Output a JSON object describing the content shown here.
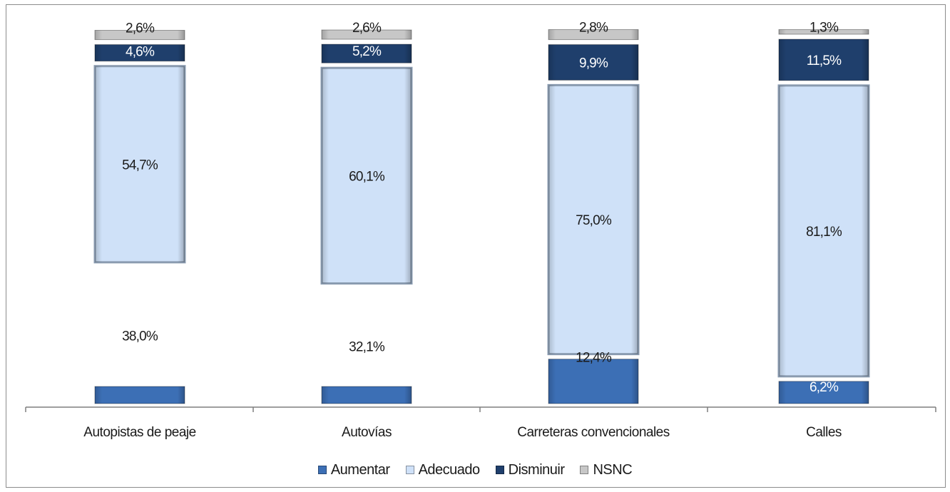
{
  "chart_data": {
    "type": "bar",
    "stacked": true,
    "normalized": true,
    "categories": [
      "Autopistas de peaje",
      "Autovías",
      "Carreteras convencionales",
      "Calles"
    ],
    "series": [
      {
        "name": "Aumentar",
        "values": [
          38.0,
          32.1,
          12.4,
          6.2
        ],
        "labels": [
          "38,0%",
          "32,1%",
          "12,4%",
          "6,2%"
        ],
        "color": "#3c6fb5"
      },
      {
        "name": "Adecuado",
        "values": [
          54.7,
          60.1,
          75.0,
          81.1
        ],
        "labels": [
          "54,7%",
          "60,1%",
          "75,0%",
          "81,1%"
        ],
        "color": "#cfe1f8"
      },
      {
        "name": "Disminuir",
        "values": [
          4.6,
          5.2,
          9.9,
          11.5
        ],
        "labels": [
          "4,6%",
          "5,2%",
          "9,9%",
          "11,5%"
        ],
        "color": "#1f3f6c"
      },
      {
        "name": "NS/NC",
        "values": [
          2.6,
          2.6,
          2.8,
          1.3
        ],
        "labels": [
          "2,6%",
          "2,6%",
          "2,8%",
          "1,3%"
        ],
        "color": "#c7c7c7"
      }
    ],
    "ylim": [
      0,
      100
    ],
    "grid": false,
    "legend_position": "bottom"
  },
  "legend": {
    "items": [
      {
        "label": "Aumentar",
        "color": "#3c6fb5"
      },
      {
        "label": "Adecuado",
        "color": "#cfe1f8"
      },
      {
        "label": "Disminuir",
        "color": "#1f3f6c"
      },
      {
        "label": "NSNC",
        "color": "#c7c7c7"
      }
    ]
  }
}
